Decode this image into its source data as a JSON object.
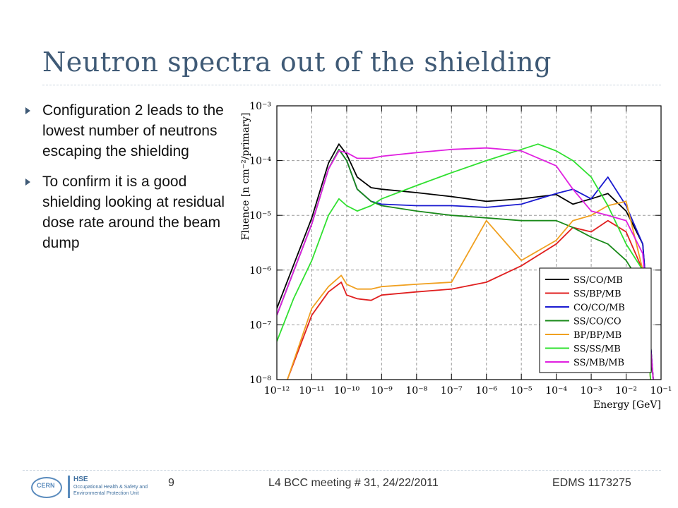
{
  "slide": {
    "title": "Neutron spectra out of the shielding",
    "bullets": [
      "Configuration 2 leads to the lowest number of neutrons escaping the shielding",
      "To confirm it is a good shielding looking at residual dose rate around the beam dump"
    ]
  },
  "footer": {
    "page_number": "9",
    "meeting": "L4 BCC meeting # 31, 24/22/2011",
    "edms": "EDMS 1173275",
    "logo_text": "HSE",
    "logo_subtext": "Occupational Health & Safety and Environmental Protection Unit",
    "logo_circle_text": "CERN"
  },
  "chart_data": {
    "type": "line",
    "title": "",
    "xlabel": "Energy [GeV]",
    "ylabel": "Fluence [n cm⁻²/primary]",
    "xscale": "log",
    "yscale": "log",
    "xlim": [
      1e-12,
      0.1
    ],
    "ylim": [
      1e-08,
      0.001
    ],
    "x_ticks": [
      "10⁻¹²",
      "10⁻¹¹",
      "10⁻¹⁰",
      "10⁻⁹",
      "10⁻⁸",
      "10⁻⁷",
      "10⁻⁶",
      "10⁻⁵",
      "10⁻⁴",
      "10⁻³",
      "10⁻²",
      "10⁻¹"
    ],
    "y_ticks": [
      "10⁻⁸",
      "10⁻⁷",
      "10⁻⁶",
      "10⁻⁵",
      "10⁻⁴",
      "10⁻³"
    ],
    "grid": true,
    "legend_position": "bottom-right",
    "series": [
      {
        "name": "SS/CO/MB",
        "color": "#000000",
        "x": [
          1e-12,
          1e-11,
          3e-11,
          6e-11,
          1e-10,
          2e-10,
          5e-10,
          1e-09,
          1e-08,
          1e-07,
          1e-06,
          1e-05,
          0.0001,
          0.0003,
          0.001,
          0.003,
          0.01,
          0.03,
          0.06
        ],
        "y": [
          2e-07,
          9e-06,
          9e-05,
          0.0002,
          0.00013,
          5e-05,
          3.2e-05,
          3e-05,
          2.6e-05,
          2.2e-05,
          1.8e-05,
          2e-05,
          2.4e-05,
          1.6e-05,
          2e-05,
          2.5e-05,
          1.2e-05,
          3e-06,
          1e-08
        ]
      },
      {
        "name": "SS/BP/MB",
        "color": "#e02020",
        "x": [
          2e-12,
          1e-11,
          3e-11,
          7e-11,
          1e-10,
          2e-10,
          5e-10,
          1e-09,
          1e-08,
          1e-07,
          1e-06,
          1e-05,
          0.0001,
          0.0003,
          0.001,
          0.003,
          0.01,
          0.03,
          0.05
        ],
        "y": [
          1e-08,
          1.5e-07,
          4e-07,
          6e-07,
          3.5e-07,
          3e-07,
          2.8e-07,
          3.5e-07,
          4e-07,
          4.5e-07,
          6e-07,
          1.2e-06,
          3e-06,
          6e-06,
          5e-06,
          8e-06,
          5e-06,
          1e-06,
          1e-08
        ]
      },
      {
        "name": "CO/CO/MB",
        "color": "#1a1ad0",
        "x": [
          1e-12,
          1e-11,
          3e-11,
          6e-11,
          1e-10,
          2e-10,
          5e-10,
          1e-09,
          1e-08,
          1e-07,
          1e-06,
          1e-05,
          0.0001,
          0.0003,
          0.001,
          0.003,
          0.01,
          0.03,
          0.06
        ],
        "y": [
          1.5e-07,
          7e-06,
          7e-05,
          0.00016,
          0.0001,
          3e-05,
          1.8e-05,
          1.6e-05,
          1.5e-05,
          1.5e-05,
          1.4e-05,
          1.6e-05,
          2.5e-05,
          3e-05,
          2e-05,
          5e-05,
          1.5e-05,
          3e-06,
          1e-08
        ]
      },
      {
        "name": "SS/CO/CO",
        "color": "#1a8a1a",
        "x": [
          1e-12,
          1e-11,
          3e-11,
          6e-11,
          1e-10,
          2e-10,
          5e-10,
          1e-09,
          1e-08,
          1e-07,
          1e-06,
          1e-05,
          0.0001,
          0.0003,
          0.001,
          0.003,
          0.01,
          0.03,
          0.06
        ],
        "y": [
          1.5e-07,
          7e-06,
          7e-05,
          0.00016,
          0.0001,
          3e-05,
          1.8e-05,
          1.5e-05,
          1.2e-05,
          1e-05,
          9e-06,
          8e-06,
          8e-06,
          6e-06,
          4e-06,
          3e-06,
          1.5e-06,
          5e-07,
          1e-08
        ]
      },
      {
        "name": "BP/BP/MB",
        "color": "#f0a020",
        "x": [
          2e-12,
          1e-11,
          3e-11,
          7e-11,
          1e-10,
          2e-10,
          5e-10,
          1e-09,
          1e-08,
          1e-07,
          1e-06,
          1e-05,
          0.0001,
          0.0003,
          0.001,
          0.003,
          0.01,
          0.03,
          0.05
        ],
        "y": [
          1e-08,
          2e-07,
          5e-07,
          8e-07,
          5.5e-07,
          4.5e-07,
          4.5e-07,
          5e-07,
          5.5e-07,
          6e-07,
          8e-06,
          1.5e-06,
          3.5e-06,
          8e-06,
          1e-05,
          1.5e-05,
          1.8e-05,
          1e-06,
          1e-08
        ]
      },
      {
        "name": "SS/SS/MB",
        "color": "#30e030",
        "x": [
          1e-12,
          3e-12,
          1e-11,
          3e-11,
          6e-11,
          1e-10,
          2e-10,
          5e-10,
          1e-09,
          1e-08,
          1e-07,
          1e-06,
          1e-05,
          3e-05,
          0.0001,
          0.0003,
          0.001,
          0.003,
          0.01,
          0.03,
          0.05
        ],
        "y": [
          5e-08,
          3e-07,
          1.5e-06,
          1e-05,
          2e-05,
          1.5e-05,
          1.2e-05,
          1.5e-05,
          2e-05,
          3.5e-05,
          6e-05,
          0.0001,
          0.00016,
          0.0002,
          0.00015,
          0.0001,
          5e-05,
          1.5e-05,
          3e-06,
          1e-06,
          1e-08
        ]
      },
      {
        "name": "SS/MB/MB",
        "color": "#e020e0",
        "x": [
          1e-12,
          1e-11,
          3e-11,
          6e-11,
          1e-10,
          2e-10,
          5e-10,
          1e-09,
          1e-08,
          1e-07,
          1e-06,
          1e-05,
          0.0001,
          0.0003,
          0.001,
          0.003,
          0.01,
          0.03,
          0.06
        ],
        "y": [
          1.5e-07,
          7e-06,
          7e-05,
          0.00015,
          0.00014,
          0.00011,
          0.00011,
          0.00012,
          0.00014,
          0.00016,
          0.00017,
          0.00015,
          8e-05,
          3e-05,
          1.2e-05,
          1e-05,
          8e-06,
          2e-06,
          1e-08
        ]
      }
    ]
  }
}
